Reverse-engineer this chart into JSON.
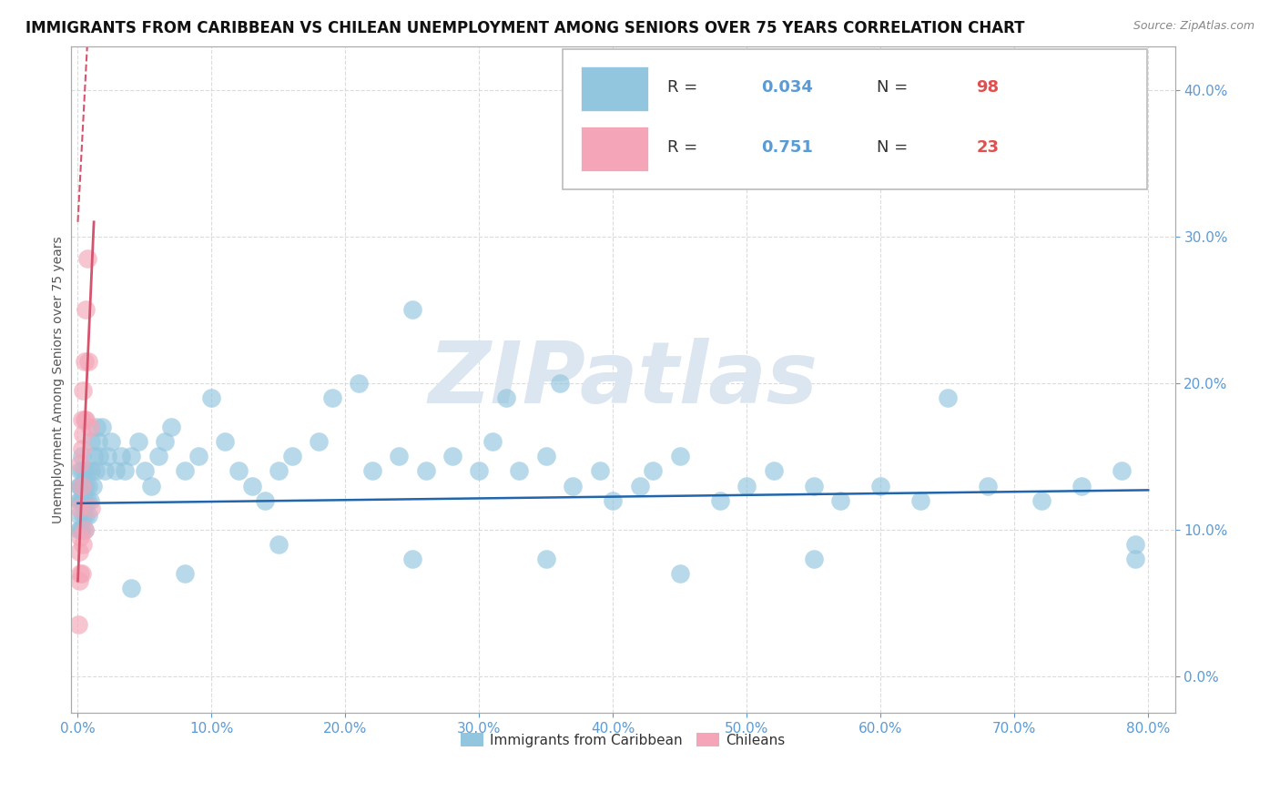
{
  "title": "IMMIGRANTS FROM CARIBBEAN VS CHILEAN UNEMPLOYMENT AMONG SENIORS OVER 75 YEARS CORRELATION CHART",
  "source": "Source: ZipAtlas.com",
  "ylabel": "Unemployment Among Seniors over 75 years",
  "xlim": [
    -0.005,
    0.82
  ],
  "ylim": [
    -0.025,
    0.43
  ],
  "xticks": [
    0.0,
    0.1,
    0.2,
    0.3,
    0.4,
    0.5,
    0.6,
    0.7,
    0.8
  ],
  "yticks": [
    0.0,
    0.1,
    0.2,
    0.3,
    0.4
  ],
  "blue_R": 0.034,
  "blue_N": 98,
  "pink_R": 0.751,
  "pink_N": 23,
  "blue_color": "#92c5de",
  "pink_color": "#f4a6b8",
  "blue_line_color": "#2166ac",
  "pink_line_color": "#d6536d",
  "tick_color": "#5b9bd5",
  "grid_color": "#d3d3d3",
  "background_color": "#ffffff",
  "watermark_color": "#dce6f0",
  "title_fontsize": 12,
  "source_fontsize": 9,
  "ylabel_fontsize": 10,
  "tick_fontsize": 11,
  "legend_fontsize": 13,
  "blue_x": [
    0.001,
    0.001,
    0.001,
    0.001,
    0.002,
    0.002,
    0.002,
    0.002,
    0.003,
    0.003,
    0.003,
    0.003,
    0.003,
    0.004,
    0.004,
    0.004,
    0.005,
    0.005,
    0.005,
    0.006,
    0.006,
    0.007,
    0.007,
    0.008,
    0.008,
    0.009,
    0.01,
    0.01,
    0.011,
    0.012,
    0.013,
    0.014,
    0.015,
    0.016,
    0.018,
    0.02,
    0.022,
    0.025,
    0.028,
    0.032,
    0.035,
    0.04,
    0.045,
    0.05,
    0.055,
    0.06,
    0.065,
    0.07,
    0.08,
    0.09,
    0.1,
    0.11,
    0.12,
    0.13,
    0.14,
    0.15,
    0.16,
    0.18,
    0.19,
    0.21,
    0.22,
    0.24,
    0.25,
    0.26,
    0.28,
    0.3,
    0.31,
    0.32,
    0.33,
    0.35,
    0.36,
    0.37,
    0.39,
    0.4,
    0.42,
    0.43,
    0.45,
    0.48,
    0.5,
    0.52,
    0.55,
    0.57,
    0.6,
    0.63,
    0.65,
    0.68,
    0.72,
    0.75,
    0.78,
    0.79,
    0.79,
    0.55,
    0.45,
    0.35,
    0.25,
    0.15,
    0.08,
    0.04
  ],
  "blue_y": [
    0.13,
    0.12,
    0.11,
    0.1,
    0.14,
    0.13,
    0.12,
    0.1,
    0.15,
    0.14,
    0.13,
    0.12,
    0.1,
    0.13,
    0.12,
    0.11,
    0.14,
    0.12,
    0.1,
    0.13,
    0.11,
    0.14,
    0.12,
    0.13,
    0.11,
    0.12,
    0.16,
    0.14,
    0.13,
    0.15,
    0.14,
    0.17,
    0.16,
    0.15,
    0.17,
    0.14,
    0.15,
    0.16,
    0.14,
    0.15,
    0.14,
    0.15,
    0.16,
    0.14,
    0.13,
    0.15,
    0.16,
    0.17,
    0.14,
    0.15,
    0.19,
    0.16,
    0.14,
    0.13,
    0.12,
    0.14,
    0.15,
    0.16,
    0.19,
    0.2,
    0.14,
    0.15,
    0.25,
    0.14,
    0.15,
    0.14,
    0.16,
    0.19,
    0.14,
    0.15,
    0.2,
    0.13,
    0.14,
    0.12,
    0.13,
    0.14,
    0.15,
    0.12,
    0.13,
    0.14,
    0.13,
    0.12,
    0.13,
    0.12,
    0.19,
    0.13,
    0.12,
    0.13,
    0.14,
    0.09,
    0.08,
    0.08,
    0.07,
    0.08,
    0.08,
    0.09,
    0.07,
    0.06
  ],
  "pink_x": [
    0.0005,
    0.001,
    0.001,
    0.001,
    0.002,
    0.002,
    0.002,
    0.003,
    0.003,
    0.003,
    0.003,
    0.004,
    0.004,
    0.004,
    0.005,
    0.005,
    0.005,
    0.006,
    0.006,
    0.007,
    0.008,
    0.009,
    0.01
  ],
  "pink_y": [
    0.035,
    0.115,
    0.085,
    0.065,
    0.145,
    0.095,
    0.07,
    0.175,
    0.155,
    0.13,
    0.07,
    0.195,
    0.165,
    0.09,
    0.215,
    0.175,
    0.1,
    0.25,
    0.175,
    0.285,
    0.215,
    0.17,
    0.115
  ],
  "blue_reg": [
    0.0,
    0.8,
    0.118,
    0.127
  ],
  "pink_reg_solid": [
    0.0,
    0.012,
    0.065,
    0.31
  ],
  "pink_reg_dashed": [
    0.0,
    0.007,
    0.31,
    0.43
  ]
}
